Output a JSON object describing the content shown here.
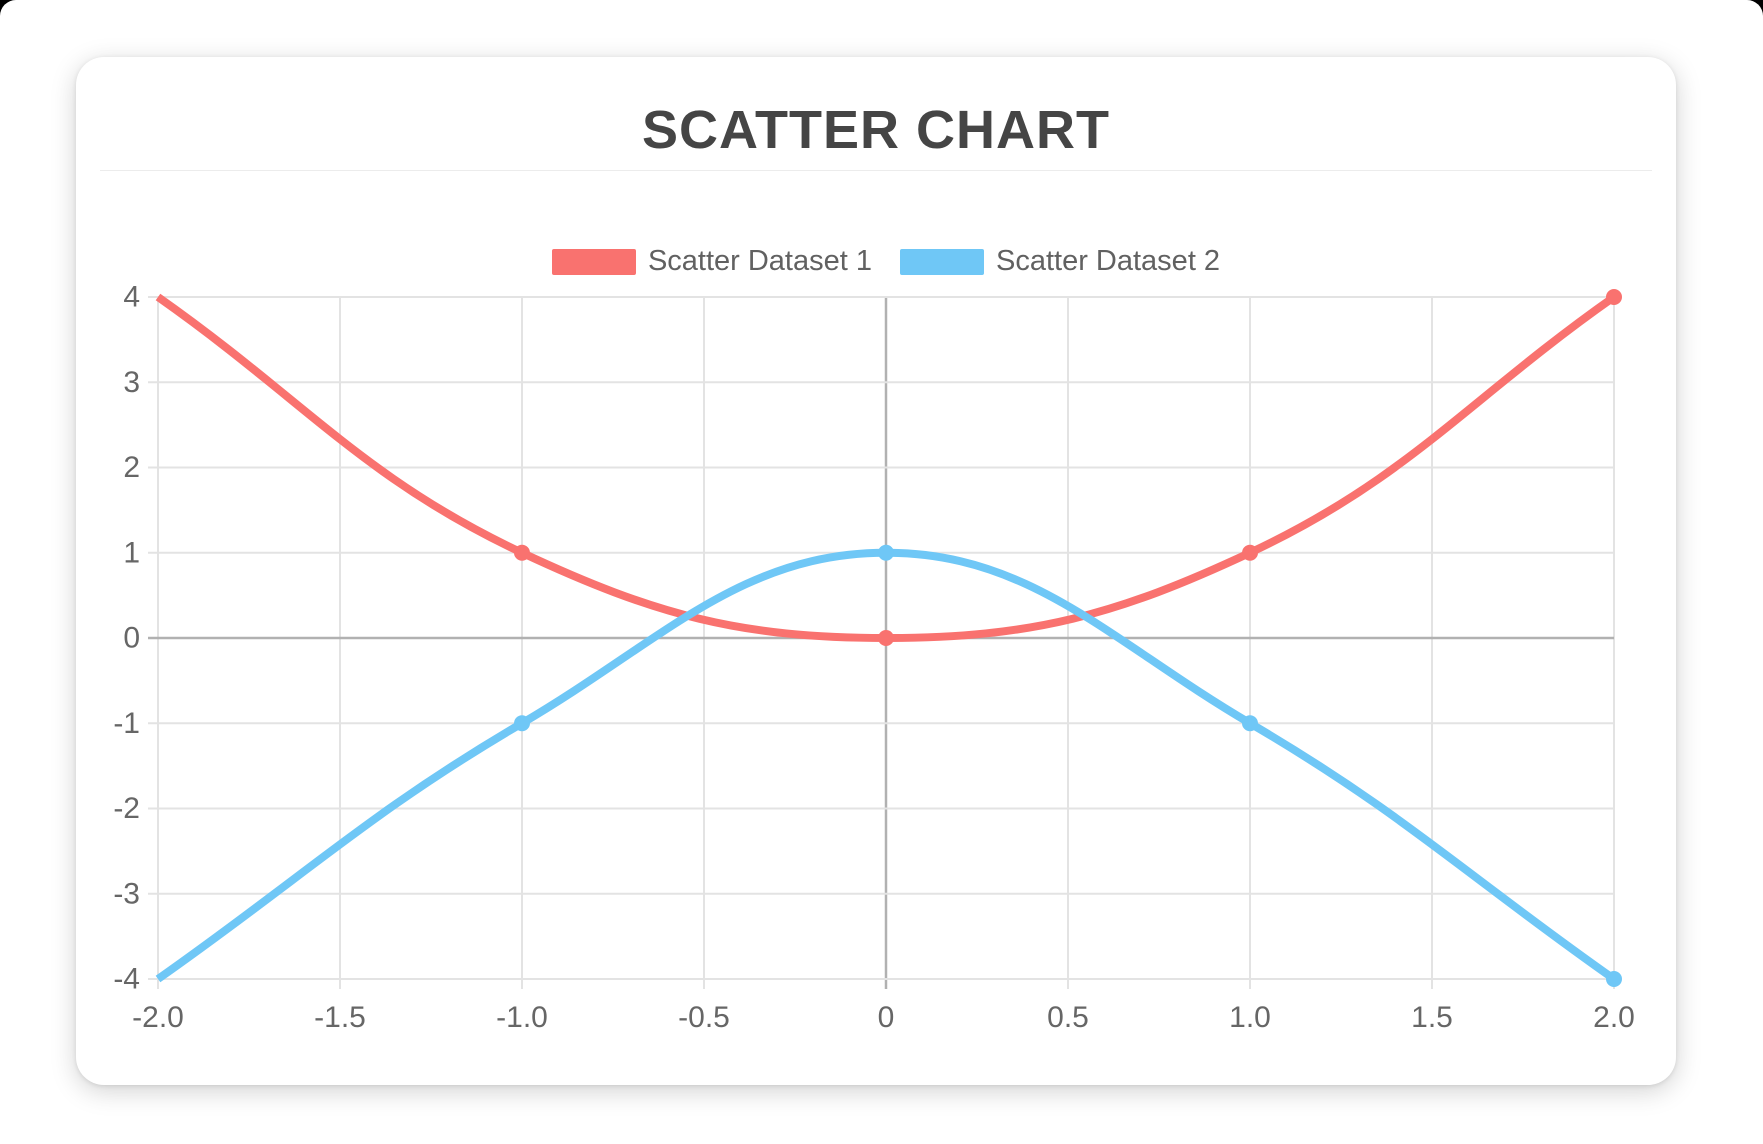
{
  "header": {
    "title": "SCATTER CHART"
  },
  "chart_data": {
    "type": "scatter",
    "title": "SCATTER CHART",
    "show_line": true,
    "line_tension": 0.4,
    "line_width": 8,
    "point_radius": 8,
    "legend_position": "top",
    "grid": {
      "on": true,
      "color": "#E3E3E3",
      "zero_color": "#B1B1B1",
      "tick_text_color": "#666666"
    },
    "x": {
      "min": -2,
      "max": 2,
      "tick_values": [
        -2,
        -1.5,
        -1,
        -0.5,
        0,
        0.5,
        1,
        1.5,
        2
      ],
      "tick_labels": [
        "-2.0",
        "-1.5",
        "-1.0",
        "-0.5",
        "0",
        "0.5",
        "1.0",
        "1.5",
        "2.0"
      ]
    },
    "y": {
      "min": -4,
      "max": 4,
      "tick_values": [
        4,
        3,
        2,
        1,
        0,
        -1,
        -2,
        -3,
        -4
      ],
      "tick_labels": [
        "4",
        "3",
        "2",
        "1",
        "0",
        "-1",
        "-2",
        "-3",
        "-4"
      ]
    },
    "series": [
      {
        "name": "Scatter Dataset 1",
        "color": "#F9726F",
        "points": [
          {
            "x": -2,
            "y": 4,
            "dot": false
          },
          {
            "x": -1,
            "y": 1,
            "dot": true
          },
          {
            "x": 0,
            "y": 0,
            "dot": true
          },
          {
            "x": 1,
            "y": 1,
            "dot": true
          },
          {
            "x": 2,
            "y": 4,
            "dot": true
          }
        ]
      },
      {
        "name": "Scatter Dataset 2",
        "color": "#6FC7F6",
        "points": [
          {
            "x": -2,
            "y": -4,
            "dot": false
          },
          {
            "x": -1,
            "y": -1,
            "dot": true
          },
          {
            "x": 0,
            "y": 1,
            "dot": true
          },
          {
            "x": 1,
            "y": -1,
            "dot": true
          },
          {
            "x": 2,
            "y": -4,
            "dot": true
          }
        ]
      }
    ]
  }
}
